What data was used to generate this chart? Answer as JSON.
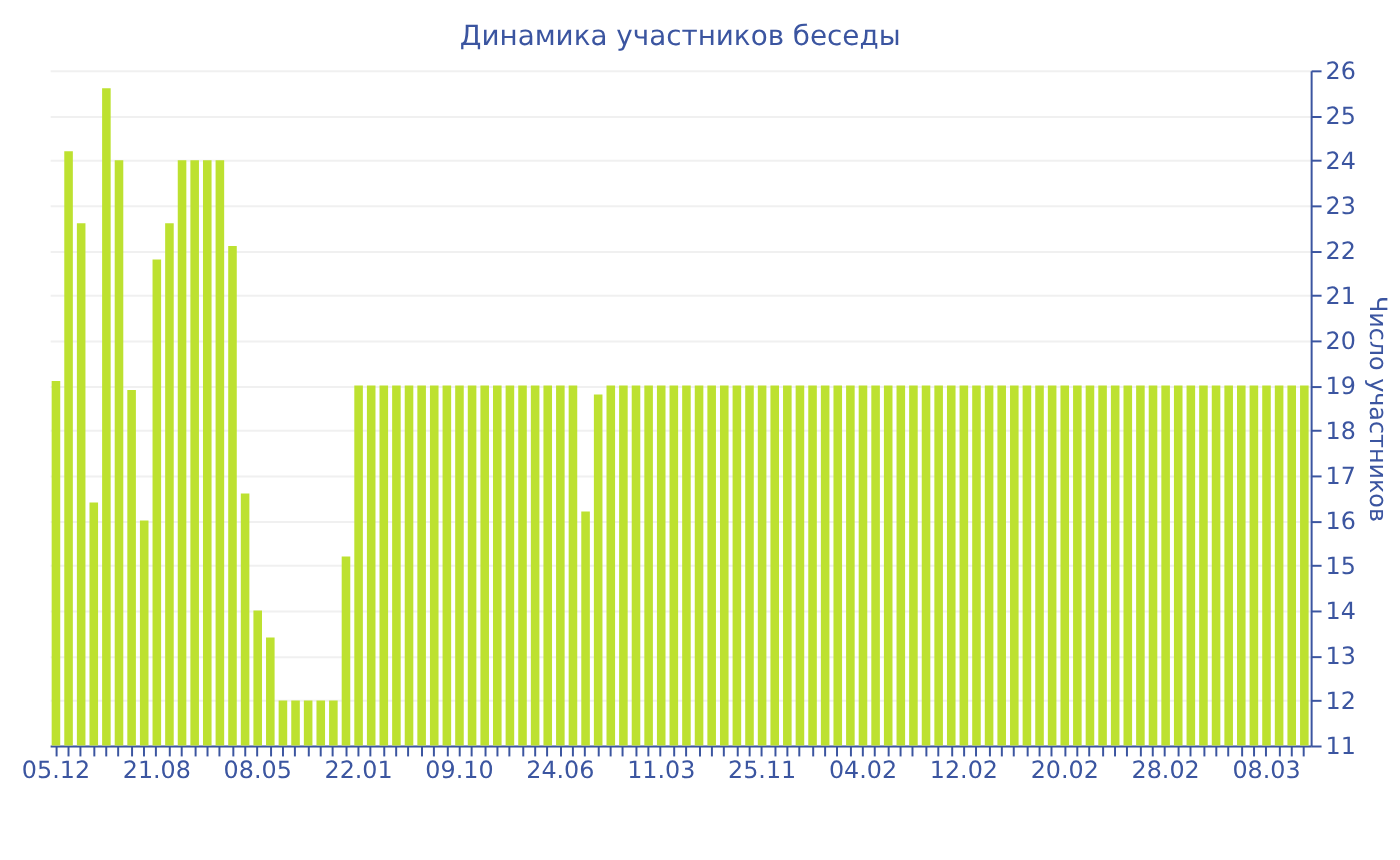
{
  "chart_data": {
    "type": "bar",
    "title": "Динамика участников беседы",
    "ylabel": "Число участников",
    "categories": [
      "05.12",
      null,
      null,
      null,
      null,
      null,
      null,
      null,
      "21.08",
      null,
      null,
      null,
      null,
      null,
      null,
      null,
      "08.05",
      null,
      null,
      null,
      null,
      null,
      null,
      null,
      "22.01",
      null,
      null,
      null,
      null,
      null,
      null,
      null,
      "09.10",
      null,
      null,
      null,
      null,
      null,
      null,
      null,
      "24.06",
      null,
      null,
      null,
      null,
      null,
      null,
      null,
      "11.03",
      null,
      null,
      null,
      null,
      null,
      null,
      null,
      "25.11",
      null,
      null,
      null,
      null,
      null,
      null,
      null,
      "04.02",
      null,
      null,
      null,
      null,
      null,
      null,
      null,
      "12.02",
      null,
      null,
      null,
      null,
      null,
      null,
      null,
      "20.02",
      null,
      null,
      null,
      null,
      null,
      null,
      null,
      "28.02",
      null,
      null,
      null,
      null,
      null,
      null,
      null,
      "08.03",
      null,
      null,
      null
    ],
    "values": [
      19.1,
      24.2,
      22.6,
      16.4,
      25.6,
      24,
      18.9,
      16,
      21.8,
      22.6,
      24,
      24,
      24,
      24,
      22.1,
      16.6,
      14,
      13.4,
      12,
      12,
      12,
      12,
      12,
      15.2,
      19,
      19,
      19,
      19,
      19,
      19,
      19,
      19,
      19,
      19,
      19,
      19,
      19,
      19,
      19,
      19,
      19,
      19,
      16.2,
      18.8,
      19,
      19,
      19,
      19,
      19,
      19,
      19,
      19,
      19,
      19,
      19,
      19,
      19,
      19,
      19,
      19,
      19,
      19,
      19,
      19,
      19,
      19,
      19,
      19,
      19,
      19,
      19,
      19,
      19,
      19,
      19,
      19,
      19,
      19,
      19,
      19,
      19,
      19,
      19,
      19,
      19,
      19,
      19,
      19,
      19,
      19,
      19,
      19,
      19,
      19,
      19,
      19,
      19,
      19,
      19,
      19
    ],
    "color": "#bde130",
    "ylim": [
      11,
      26
    ],
    "yticks": [
      11,
      12,
      13,
      14,
      15,
      16,
      17,
      18,
      19,
      20,
      21,
      22,
      23,
      24,
      25,
      26
    ],
    "grid": "y"
  }
}
